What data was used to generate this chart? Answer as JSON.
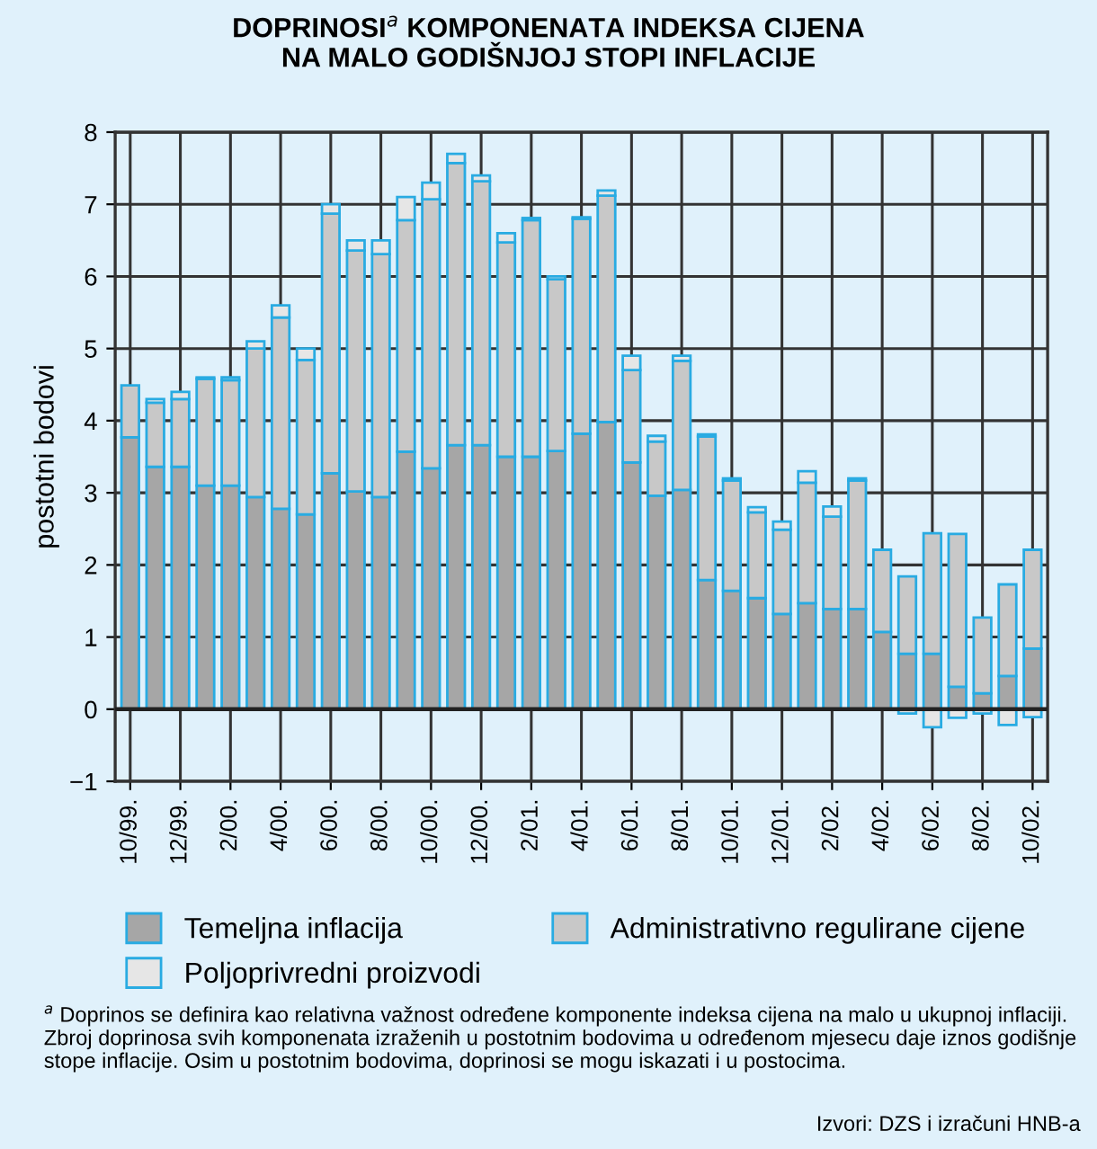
{
  "chart_data": {
    "type": "bar",
    "stacked": true,
    "title": "DOPRINOSI$^{a}$ KOMPONENATA INDEKSA CIJENA\nNA MALO GODIŠNJOJ STOPI INFLACIJE",
    "ylabel": "postotni bodovi",
    "categories": [
      "10/99.",
      null,
      "12/99.",
      null,
      "2/00.",
      null,
      "4/00.",
      null,
      "6/00.",
      null,
      "8/00.",
      null,
      "10/00.",
      null,
      "12/00.",
      null,
      "2/01.",
      null,
      "4/01.",
      null,
      "6/01.",
      null,
      "8/01.",
      null,
      "10/01.",
      null,
      "12/01.",
      null,
      "2/02.",
      null,
      "4/02.",
      null,
      "6/02.",
      null,
      "8/02.",
      null,
      "10/02."
    ],
    "series": [
      {
        "name": "Temeljna inflacija",
        "color": "#a6a6a6",
        "values": [
          3.77,
          3.36,
          3.36,
          3.1,
          3.1,
          2.94,
          2.78,
          2.7,
          3.27,
          3.02,
          2.94,
          3.57,
          3.34,
          3.66,
          3.66,
          3.5,
          3.5,
          3.58,
          3.82,
          3.98,
          3.42,
          2.96,
          3.04,
          1.79,
          1.64,
          1.54,
          1.32,
          1.47,
          1.39,
          1.39,
          1.07,
          0.77,
          0.77,
          0.31,
          0.22,
          0.46,
          0.84
        ]
      },
      {
        "name": "Administrativno regulirane cijene",
        "color": "#c8c8c8",
        "values": [
          0.72,
          0.89,
          0.94,
          1.48,
          1.46,
          2.06,
          2.65,
          2.14,
          3.6,
          3.34,
          3.37,
          3.21,
          3.73,
          3.91,
          3.66,
          2.97,
          3.28,
          2.38,
          2.98,
          3.14,
          1.28,
          0.75,
          1.79,
          1.99,
          1.53,
          1.19,
          1.17,
          1.67,
          1.28,
          1.78,
          1.14,
          1.07,
          1.67,
          2.12,
          1.05,
          1.27,
          1.37
        ]
      },
      {
        "name": "Poljoprivredni proizvodi",
        "color": "#e6e6e6",
        "values": [
          0,
          0.05,
          0.1,
          0.02,
          0.04,
          0.1,
          0.17,
          0.16,
          0.13,
          0.14,
          0.19,
          0.32,
          0.23,
          0.13,
          0.08,
          0.13,
          0.03,
          0.04,
          0.02,
          0.07,
          0.2,
          0.08,
          0.07,
          0.03,
          0.03,
          0.07,
          0.11,
          0.16,
          0.14,
          0.03,
          0,
          -0.06,
          -0.25,
          -0.12,
          -0.06,
          -0.22,
          -0.11
        ]
      }
    ],
    "ylim": [
      -1,
      8
    ],
    "yticks": [
      {
        "value": -1,
        "label": "−1"
      },
      0,
      1,
      2,
      3,
      4,
      5,
      6,
      7,
      8
    ],
    "grid": true,
    "legend": "bottom",
    "annotations": [
      "$^{a}$ Doprinos se definira kao relativna važnost određene komponente indeksa cijena na malo u ukupnoj inflaciji. Zbroj doprinosa svih komponenata izraženih u postotnim bodovima u određenom mjesecu daje iznos godišnje stope inflacije. Osim u postotnim bodovima, doprinosi se mogu iskazati i u postocima.",
      "Izvori: DZS i izračuni HNB-a"
    ]
  }
}
